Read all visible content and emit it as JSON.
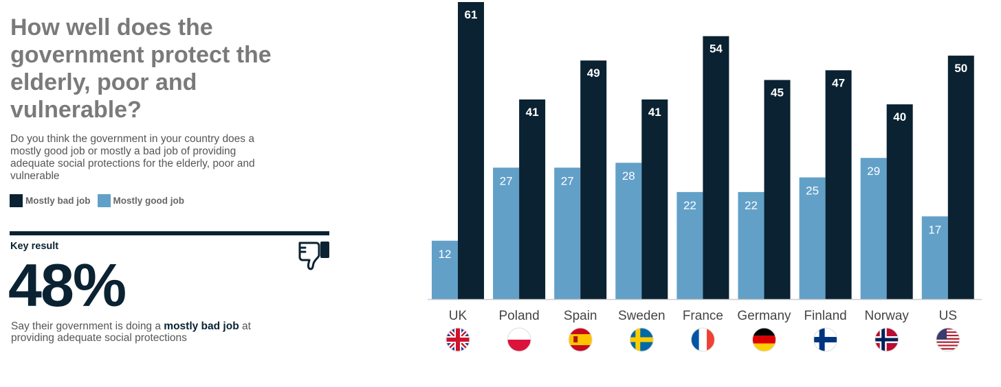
{
  "text": {
    "title": "How well does the government protect the elderly, poor and vulnerable?",
    "subtitle": "Do you think the government in your country does a mostly good job or mostly a bad job of providing adequate social protections for the elderly, poor and vulnerable",
    "key_label": "Key result",
    "key_value": "48%",
    "key_desc_pre": "Say their government is doing a ",
    "key_desc_bold": "mostly bad job",
    "key_desc_post": " at providing adequate social protections"
  },
  "icons": {
    "key_result": "thumbs-down-icon"
  },
  "colors": {
    "bad": "#0a2232",
    "good": "#62a0c8",
    "title": "#7a7a7a"
  },
  "chart_data": {
    "type": "bar",
    "title": "How well does the government protect the elderly, poor and vulnerable?",
    "categories": [
      "UK",
      "Poland",
      "Spain",
      "Sweden",
      "France",
      "Germany",
      "Finland",
      "Norway",
      "US"
    ],
    "flags": [
      "uk-flag-icon",
      "poland-flag-icon",
      "spain-flag-icon",
      "sweden-flag-icon",
      "france-flag-icon",
      "germany-flag-icon",
      "finland-flag-icon",
      "norway-flag-icon",
      "us-flag-icon"
    ],
    "series": [
      {
        "name": "Mostly good job",
        "color": "#62a0c8",
        "values": [
          12,
          27,
          27,
          28,
          22,
          22,
          25,
          29,
          17
        ]
      },
      {
        "name": "Mostly bad job",
        "color": "#0a2232",
        "values": [
          61,
          41,
          49,
          41,
          54,
          45,
          47,
          40,
          50
        ]
      }
    ],
    "legend_order": [
      "Mostly bad job",
      "Mostly good job"
    ],
    "ylim": [
      0,
      61
    ],
    "grid": false,
    "legend": "left"
  }
}
